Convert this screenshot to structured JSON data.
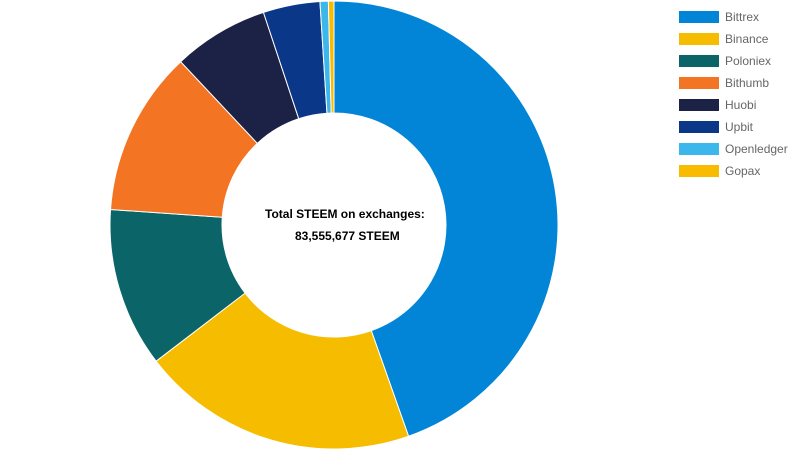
{
  "chart_data": {
    "type": "pie",
    "title": "",
    "center_text": {
      "title": "Total STEEM on exchanges:",
      "value": "83,555,677 STEEM"
    },
    "categories": [
      "Bittrex",
      "Binance",
      "Poloniex",
      "Bithumb",
      "Huobi",
      "Upbit",
      "Openledger",
      "Gopax"
    ],
    "values": [
      44.6,
      20.0,
      11.5,
      11.9,
      6.9,
      4.1,
      0.6,
      0.4
    ],
    "colors": [
      "#0285D7",
      "#F5BC00",
      "#0B6568",
      "#F37422",
      "#1C2146",
      "#0B3788",
      "#3BB7EC",
      "#F8BB00"
    ],
    "legend_position": "top-right",
    "donut": true
  }
}
